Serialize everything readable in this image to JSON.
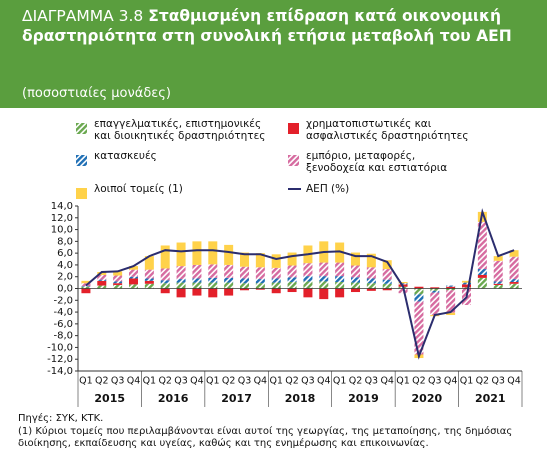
{
  "chart_data": {
    "type": "stacked_bar_line",
    "label": "ΔΙΑΓΡΑΜΜΑ 3.8",
    "title": "Σταθμισμένη επίδραση κατά οικονομική δραστηριότητα στη συνολική ετήσια μεταβολή του ΑΕΠ",
    "subtitle": "(ποσοστιαίες μονάδες)",
    "categories": [
      "Q1",
      "Q2",
      "Q3",
      "Q4",
      "Q1",
      "Q2",
      "Q3",
      "Q4",
      "Q1",
      "Q2",
      "Q3",
      "Q4",
      "Q1",
      "Q2",
      "Q3",
      "Q4",
      "Q1",
      "Q2",
      "Q3",
      "Q4",
      "Q1",
      "Q2",
      "Q3",
      "Q4",
      "Q1",
      "Q2",
      "Q3",
      "Q4"
    ],
    "years": [
      "2015",
      "2016",
      "2017",
      "2018",
      "2019",
      "2020",
      "2021"
    ],
    "series": [
      {
        "name": "επαγγελματικές, επιστημονικές\nκαι διοικητικές δραστηριότητες",
        "color": "#6aa84f",
        "hatched": true,
        "values": [
          0.3,
          0.5,
          0.6,
          0.7,
          0.8,
          0.9,
          1.0,
          1.0,
          1.0,
          1.0,
          0.9,
          0.9,
          1.0,
          1.1,
          1.2,
          1.2,
          1.1,
          1.0,
          0.9,
          0.8,
          0.3,
          -1.0,
          -0.4,
          -0.3,
          0.2,
          1.8,
          0.6,
          0.8
        ]
      },
      {
        "name": "χρηματοπιστωτικές και\nασφαλιστικές δραστηριότητες",
        "color": "#e3202a",
        "hatched": false,
        "values": [
          -0.8,
          0.8,
          0.3,
          1.0,
          0.5,
          -0.8,
          -1.5,
          -1.2,
          -1.5,
          -1.2,
          -0.3,
          -0.2,
          -0.8,
          -0.6,
          -1.5,
          -1.8,
          -1.5,
          -0.6,
          -0.4,
          -0.3,
          0.4,
          0.3,
          0.2,
          0.3,
          0.5,
          0.5,
          0.2,
          0.3
        ]
      },
      {
        "name": "κατασκευές",
        "color": "#1f6fb5",
        "hatched": true,
        "values": [
          0.1,
          0.2,
          0.3,
          0.3,
          0.4,
          0.5,
          0.6,
          0.7,
          0.8,
          0.8,
          0.8,
          0.7,
          0.7,
          0.8,
          0.9,
          0.9,
          1.0,
          0.9,
          0.8,
          0.7,
          0.2,
          -1.2,
          -0.3,
          0.2,
          0.3,
          1.0,
          0.4,
          0.5
        ]
      },
      {
        "name": "εμπόριο, μεταφορές,\nξενοδοχεία και εστιατόρια",
        "color": "#d66ba0",
        "hatched": true,
        "values": [
          0.5,
          0.8,
          1.0,
          1.2,
          1.5,
          2.0,
          2.2,
          2.3,
          2.3,
          2.2,
          2.0,
          2.0,
          1.8,
          2.0,
          2.2,
          2.3,
          2.3,
          2.0,
          1.9,
          1.8,
          -0.8,
          -9.0,
          -3.8,
          -3.8,
          -2.8,
          8.0,
          3.5,
          3.8
        ]
      },
      {
        "name": "λοιποί τομείς (1)",
        "color": "#ffd24a",
        "hatched": false,
        "values": [
          0.4,
          0.5,
          0.7,
          0.6,
          2.3,
          3.9,
          4.0,
          4.0,
          3.9,
          3.4,
          2.4,
          2.4,
          2.3,
          2.2,
          3.0,
          3.6,
          3.4,
          2.2,
          2.3,
          1.5,
          0.2,
          -0.6,
          -0.2,
          -0.4,
          0.3,
          1.7,
          0.8,
          1.1
        ]
      }
    ],
    "line": {
      "name": "ΑΕΠ (%)",
      "color": "#2b2d6e",
      "values": [
        0.5,
        2.8,
        2.9,
        3.8,
        5.5,
        6.5,
        6.3,
        6.5,
        6.5,
        6.2,
        5.8,
        5.8,
        5.0,
        5.5,
        5.8,
        6.2,
        6.3,
        5.5,
        5.5,
        4.5,
        0.3,
        -11.5,
        -4.5,
        -4.0,
        -1.5,
        13.0,
        5.5,
        6.5
      ]
    },
    "ylim": [
      -14,
      14
    ],
    "yticks": [
      {
        "value": 14,
        "label": "14,0"
      },
      {
        "value": 12,
        "label": "12,0"
      },
      {
        "value": 10,
        "label": "10,0"
      },
      {
        "value": 8,
        "label": "8,0"
      },
      {
        "value": 6,
        "label": "6,0"
      },
      {
        "value": 4,
        "label": "4,0"
      },
      {
        "value": 2,
        "label": "2,0"
      },
      {
        "value": 0,
        "label": "0,0"
      },
      {
        "value": -2,
        "label": "-2,0"
      },
      {
        "value": -4,
        "label": "-4,0"
      },
      {
        "value": -6,
        "label": "-6,0"
      },
      {
        "value": -8,
        "label": "-8,0"
      },
      {
        "value": -10,
        "label": "-10,0"
      },
      {
        "value": -12,
        "label": "-12,0"
      },
      {
        "value": -14,
        "label": "-14,0"
      }
    ],
    "source": "Πηγές: ΣΥΚ, ΚΤΚ.",
    "note": "(1) Κύριοι τομείς που περιλαμβάνονται είναι αυτοί της γεωργίας, της μεταποίησης, της δημόσιας διοίκησης, εκπαίδευσης και υγείας, καθώς και της ενημέρωσης και επικοινωνίας."
  }
}
